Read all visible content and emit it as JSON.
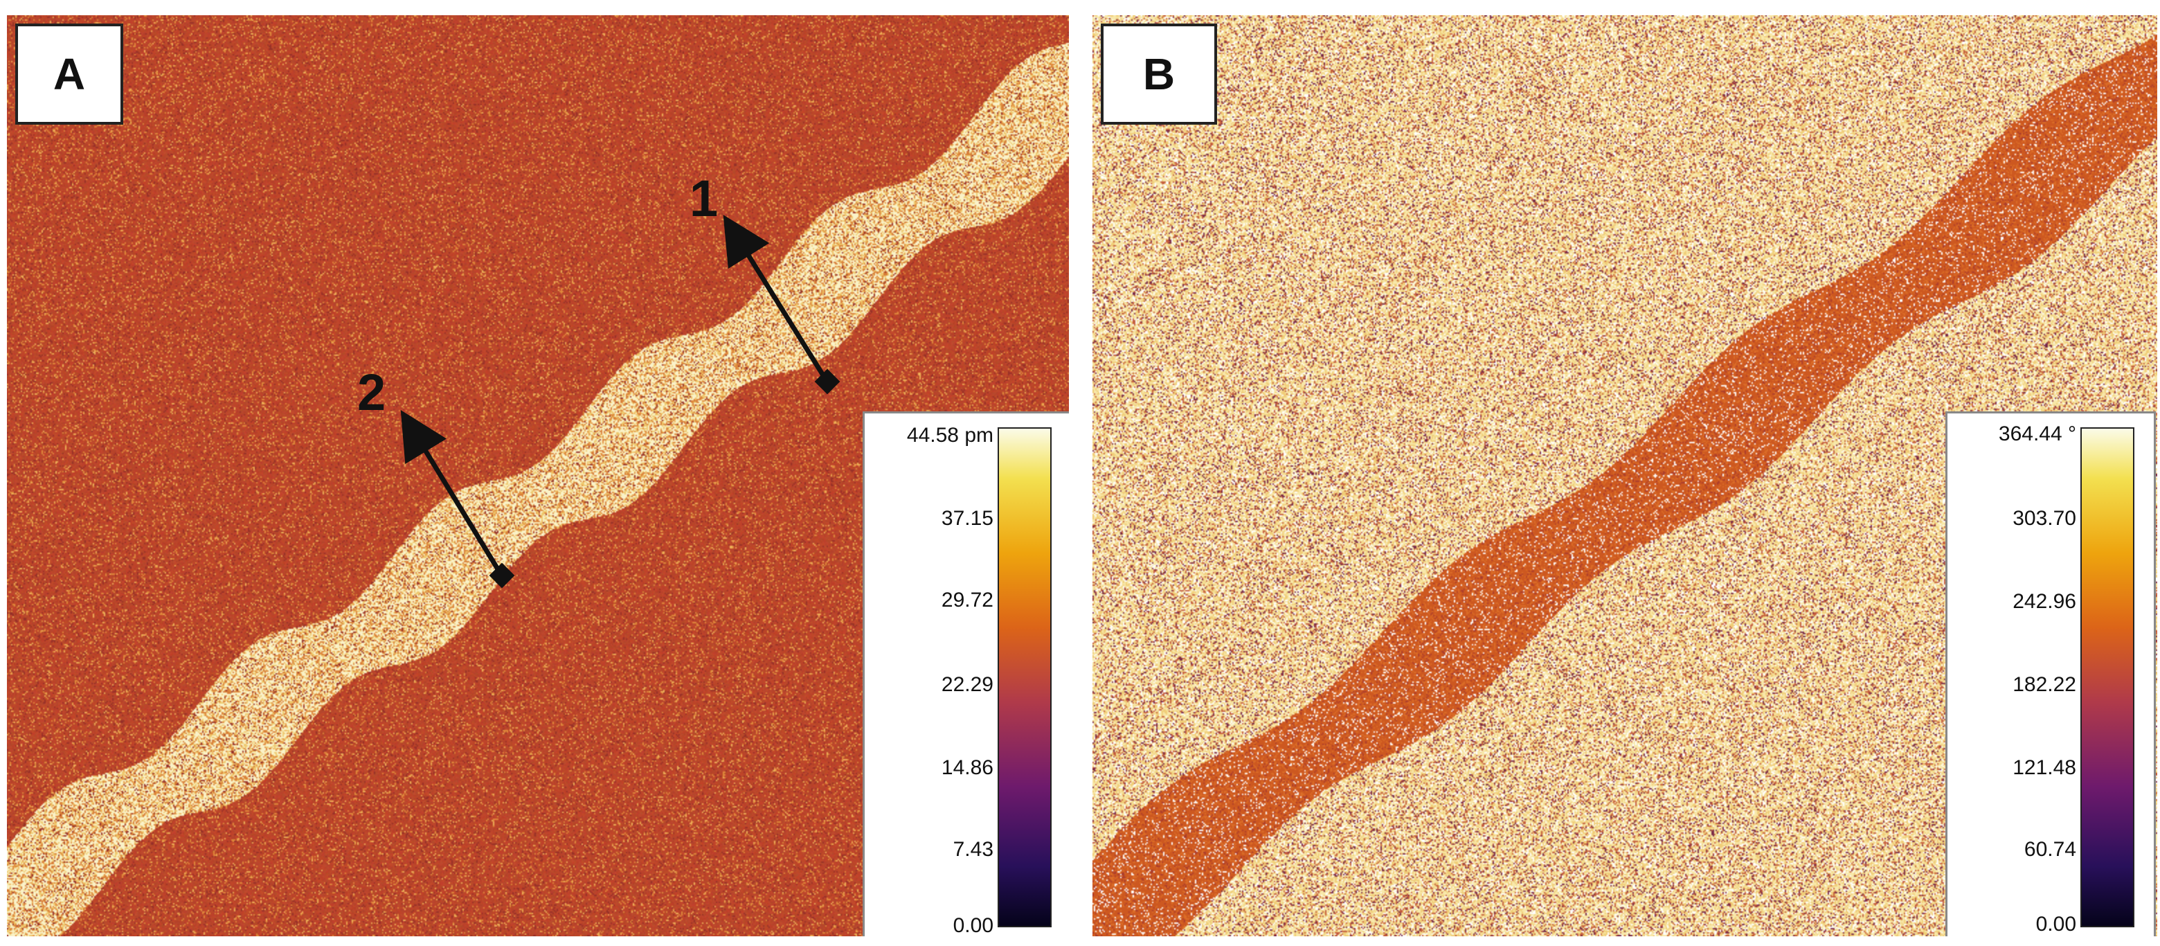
{
  "panels": {
    "a": {
      "label": "A",
      "colorbar": {
        "max_label": "44.58 pm",
        "ticks": [
          "37.15",
          "29.72",
          "22.29",
          "14.86",
          "7.43",
          "0.00"
        ]
      },
      "markers": [
        {
          "label": "1"
        },
        {
          "label": "2"
        }
      ]
    },
    "b": {
      "label": "B",
      "colorbar": {
        "max_label": "364.44 °",
        "ticks": [
          "303.70",
          "242.96",
          "182.22",
          "121.48",
          "60.74",
          "0.00"
        ]
      }
    }
  },
  "colors": {
    "panel_a_background": "#b4432a",
    "panel_a_stripe": "#fff3c0",
    "panel_b_background": "#ecd089",
    "panel_b_stripe": "#c8561e",
    "marker": "#111111"
  }
}
